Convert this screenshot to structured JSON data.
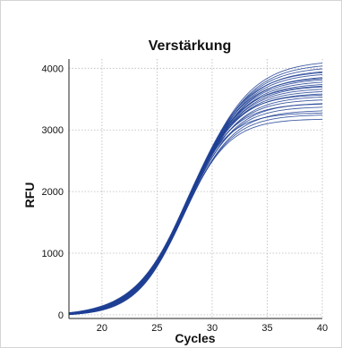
{
  "chart_data": {
    "type": "line",
    "title": "Verstärkung",
    "xlabel": "Cycles",
    "ylabel": "RFU",
    "xlim": [
      17,
      40
    ],
    "ylim": [
      -60,
      4150
    ],
    "xticks": [
      20,
      25,
      30,
      35,
      40
    ],
    "yticks": [
      0,
      1000,
      2000,
      3000,
      4000
    ],
    "grid": true,
    "legend": "none",
    "series_color": "#1f3f94",
    "curve_model": "sigmoid: RFU = plateau / (1 + exp(-(cycle - midpoint) / slope))",
    "series": [
      {
        "plateau": 3200,
        "midpoint": 27.3,
        "slope": 2.1
      },
      {
        "plateau": 3270,
        "midpoint": 27.4,
        "slope": 2.15
      },
      {
        "plateau": 3340,
        "midpoint": 27.5,
        "slope": 2.2
      },
      {
        "plateau": 3400,
        "midpoint": 27.5,
        "slope": 2.2
      },
      {
        "plateau": 3460,
        "midpoint": 27.6,
        "slope": 2.25
      },
      {
        "plateau": 3520,
        "midpoint": 27.6,
        "slope": 2.25
      },
      {
        "plateau": 3570,
        "midpoint": 27.7,
        "slope": 2.3
      },
      {
        "plateau": 3620,
        "midpoint": 27.7,
        "slope": 2.3
      },
      {
        "plateau": 3660,
        "midpoint": 27.8,
        "slope": 2.32
      },
      {
        "plateau": 3700,
        "midpoint": 27.8,
        "slope": 2.35
      },
      {
        "plateau": 3740,
        "midpoint": 27.9,
        "slope": 2.37
      },
      {
        "plateau": 3780,
        "midpoint": 27.9,
        "slope": 2.4
      },
      {
        "plateau": 3820,
        "midpoint": 28.0,
        "slope": 2.42
      },
      {
        "plateau": 3860,
        "midpoint": 28.0,
        "slope": 2.45
      },
      {
        "plateau": 3900,
        "midpoint": 28.1,
        "slope": 2.47
      },
      {
        "plateau": 3950,
        "midpoint": 28.1,
        "slope": 2.5
      },
      {
        "plateau": 4000,
        "midpoint": 28.2,
        "slope": 2.52
      },
      {
        "plateau": 4050,
        "midpoint": 28.2,
        "slope": 2.55
      },
      {
        "plateau": 4100,
        "midpoint": 28.3,
        "slope": 2.57
      },
      {
        "plateau": 4150,
        "midpoint": 28.3,
        "slope": 2.6
      },
      {
        "plateau": 3300,
        "midpoint": 27.2,
        "slope": 2.05
      },
      {
        "plateau": 3450,
        "midpoint": 27.4,
        "slope": 2.18
      },
      {
        "plateau": 3600,
        "midpoint": 27.5,
        "slope": 2.28
      },
      {
        "plateau": 3750,
        "midpoint": 27.7,
        "slope": 2.36
      },
      {
        "plateau": 3880,
        "midpoint": 27.9,
        "slope": 2.44
      },
      {
        "plateau": 3980,
        "midpoint": 28.0,
        "slope": 2.5
      }
    ]
  }
}
